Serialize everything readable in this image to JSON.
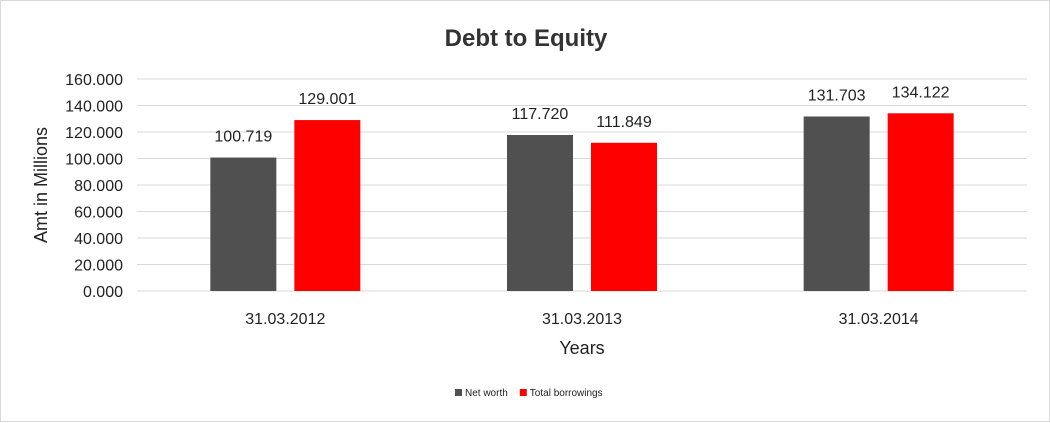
{
  "chart_data": {
    "type": "bar",
    "title": "Debt to Equity",
    "xlabel": "Years",
    "ylabel": "Amt in Millions",
    "categories": [
      "31.03.2012",
      "31.03.2013",
      "31.03.2014"
    ],
    "series": [
      {
        "name": "Net worth",
        "color": "#505050",
        "values": [
          100.719,
          117.72,
          131.703
        ]
      },
      {
        "name": "Total borrowings",
        "color": "#ff0000",
        "values": [
          129.001,
          111.849,
          134.122
        ]
      }
    ],
    "ylim": [
      0,
      160
    ],
    "yticks": [
      "0.000",
      "20.000",
      "40.000",
      "60.000",
      "80.000",
      "100.000",
      "120.000",
      "140.000",
      "160.000"
    ],
    "data_labels": [
      [
        "100.719",
        "117.720",
        "131.703"
      ],
      [
        "129.001",
        "111.849",
        "134.122"
      ]
    ],
    "grid": true,
    "legend_position": "bottom"
  }
}
